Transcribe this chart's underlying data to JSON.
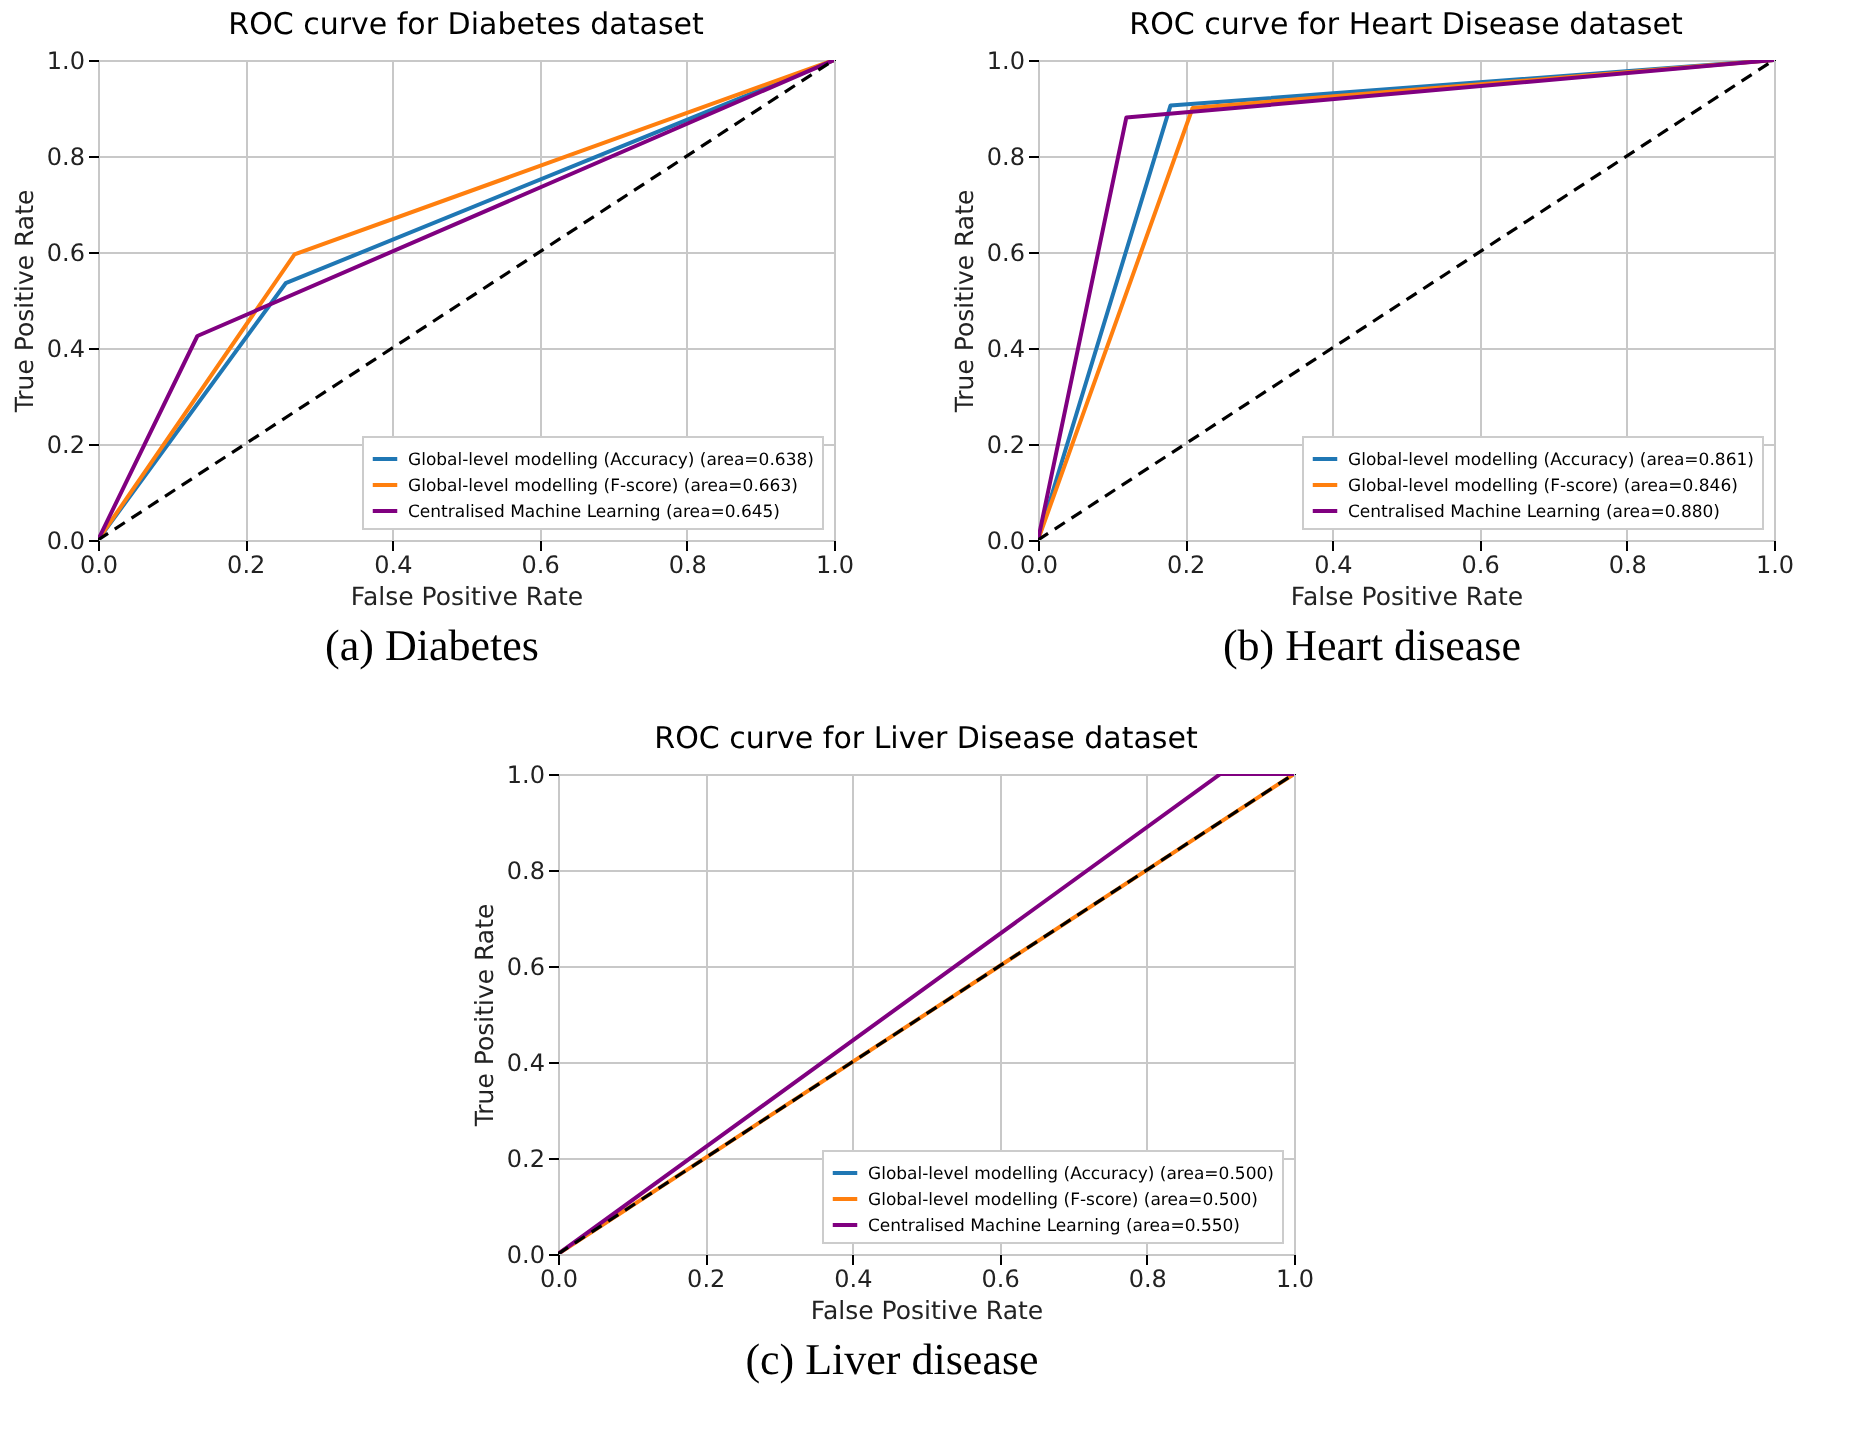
{
  "chart_data": [
    {
      "type": "line",
      "title": "ROC curve for Diabetes dataset",
      "xlabel": "False Positive Rate",
      "ylabel": "True Positive Rate",
      "annotations": [
        "(a) Diabetes"
      ],
      "xlim": [
        0,
        1
      ],
      "ylim": [
        0,
        1
      ],
      "xticks": [
        {
          "value": 0,
          "label": "0.0"
        },
        {
          "value": 0.2,
          "label": "0.2"
        },
        {
          "value": 0.4,
          "label": "0.4"
        },
        {
          "value": 0.6,
          "label": "0.6"
        },
        {
          "value": 0.8,
          "label": "0.8"
        },
        {
          "value": 1,
          "label": "1.0"
        }
      ],
      "yticks": [
        {
          "value": 0,
          "label": "0.0"
        },
        {
          "value": 0.2,
          "label": "0.2"
        },
        {
          "value": 0.4,
          "label": "0.4"
        },
        {
          "value": 0.6,
          "label": "0.6"
        },
        {
          "value": 0.8,
          "label": "0.8"
        },
        {
          "value": 1,
          "label": "1.0"
        }
      ],
      "grid": true,
      "legend": "bottom right",
      "series": [
        {
          "name": "Global-level modelling (Accuracy) (area=0.638)",
          "color": "#1f77b4",
          "x": [
            0,
            0.255,
            1
          ],
          "values": [
            0,
            0.535,
            1
          ]
        },
        {
          "name": "Global-level modelling (F-score) (area=0.663)",
          "color": "#ff7f0e",
          "x": [
            0,
            0.267,
            1
          ],
          "values": [
            0,
            0.595,
            1
          ]
        },
        {
          "name": "Centralised Machine Learning (area=0.645)",
          "color": "#800080",
          "x": [
            0,
            0.135,
            1
          ],
          "values": [
            0,
            0.425,
            1
          ]
        },
        {
          "color": "#000000",
          "line_style": "dashed",
          "x": [
            0,
            1
          ],
          "values": [
            0,
            1
          ]
        }
      ]
    },
    {
      "type": "line",
      "title": "ROC curve for Heart Disease dataset",
      "xlabel": "False Positive Rate",
      "ylabel": "True Positive Rate",
      "annotations": [
        "(b) Heart disease"
      ],
      "xlim": [
        0,
        1
      ],
      "ylim": [
        0,
        1
      ],
      "xticks": [
        {
          "value": 0,
          "label": "0.0"
        },
        {
          "value": 0.2,
          "label": "0.2"
        },
        {
          "value": 0.4,
          "label": "0.4"
        },
        {
          "value": 0.6,
          "label": "0.6"
        },
        {
          "value": 0.8,
          "label": "0.8"
        },
        {
          "value": 1,
          "label": "1.0"
        }
      ],
      "yticks": [
        {
          "value": 0,
          "label": "0.0"
        },
        {
          "value": 0.2,
          "label": "0.2"
        },
        {
          "value": 0.4,
          "label": "0.4"
        },
        {
          "value": 0.6,
          "label": "0.6"
        },
        {
          "value": 0.8,
          "label": "0.8"
        },
        {
          "value": 1,
          "label": "1.0"
        }
      ],
      "grid": true,
      "legend": "bottom right",
      "series": [
        {
          "name": "Global-level modelling (Accuracy) (area=0.861)",
          "color": "#1f77b4",
          "x": [
            0,
            0.18,
            1
          ],
          "values": [
            0,
            0.905,
            1
          ]
        },
        {
          "name": "Global-level modelling (F-score) (area=0.846)",
          "color": "#ff7f0e",
          "x": [
            0,
            0.21,
            1
          ],
          "values": [
            0,
            0.9,
            1
          ]
        },
        {
          "name": "Centralised Machine Learning (area=0.880)",
          "color": "#800080",
          "x": [
            0,
            0.12,
            1
          ],
          "values": [
            0,
            0.88,
            1
          ]
        },
        {
          "color": "#000000",
          "line_style": "dashed",
          "x": [
            0,
            1
          ],
          "values": [
            0,
            1
          ]
        }
      ]
    },
    {
      "type": "line",
      "title": "ROC curve for Liver Disease dataset",
      "xlabel": "False Positive Rate",
      "ylabel": "True Positive Rate",
      "annotations": [
        "(c) Liver disease"
      ],
      "xlim": [
        0,
        1
      ],
      "ylim": [
        0,
        1
      ],
      "xticks": [
        {
          "value": 0,
          "label": "0.0"
        },
        {
          "value": 0.2,
          "label": "0.2"
        },
        {
          "value": 0.4,
          "label": "0.4"
        },
        {
          "value": 0.6,
          "label": "0.6"
        },
        {
          "value": 0.8,
          "label": "0.8"
        },
        {
          "value": 1,
          "label": "1.0"
        }
      ],
      "yticks": [
        {
          "value": 0,
          "label": "0.0"
        },
        {
          "value": 0.2,
          "label": "0.2"
        },
        {
          "value": 0.4,
          "label": "0.4"
        },
        {
          "value": 0.6,
          "label": "0.6"
        },
        {
          "value": 0.8,
          "label": "0.8"
        },
        {
          "value": 1,
          "label": "1.0"
        }
      ],
      "grid": true,
      "legend": "bottom right",
      "series": [
        {
          "name": "Global-level modelling (Accuracy) (area=0.500)",
          "color": "#1f77b4",
          "values": [
            null,
            null
          ]
        },
        {
          "name": "Global-level modelling (F-score) (area=0.500)",
          "color": "#ff7f0e",
          "x": [
            0,
            1
          ],
          "values": [
            0,
            1
          ]
        },
        {
          "name": "Centralised Machine Learning (area=0.550)",
          "color": "#800080",
          "x": [
            0,
            0.9,
            1
          ],
          "values": [
            0,
            1,
            1
          ]
        },
        {
          "color": "#000000",
          "line_style": "dashed",
          "x": [
            0,
            1
          ],
          "values": [
            0,
            1
          ]
        }
      ]
    }
  ]
}
